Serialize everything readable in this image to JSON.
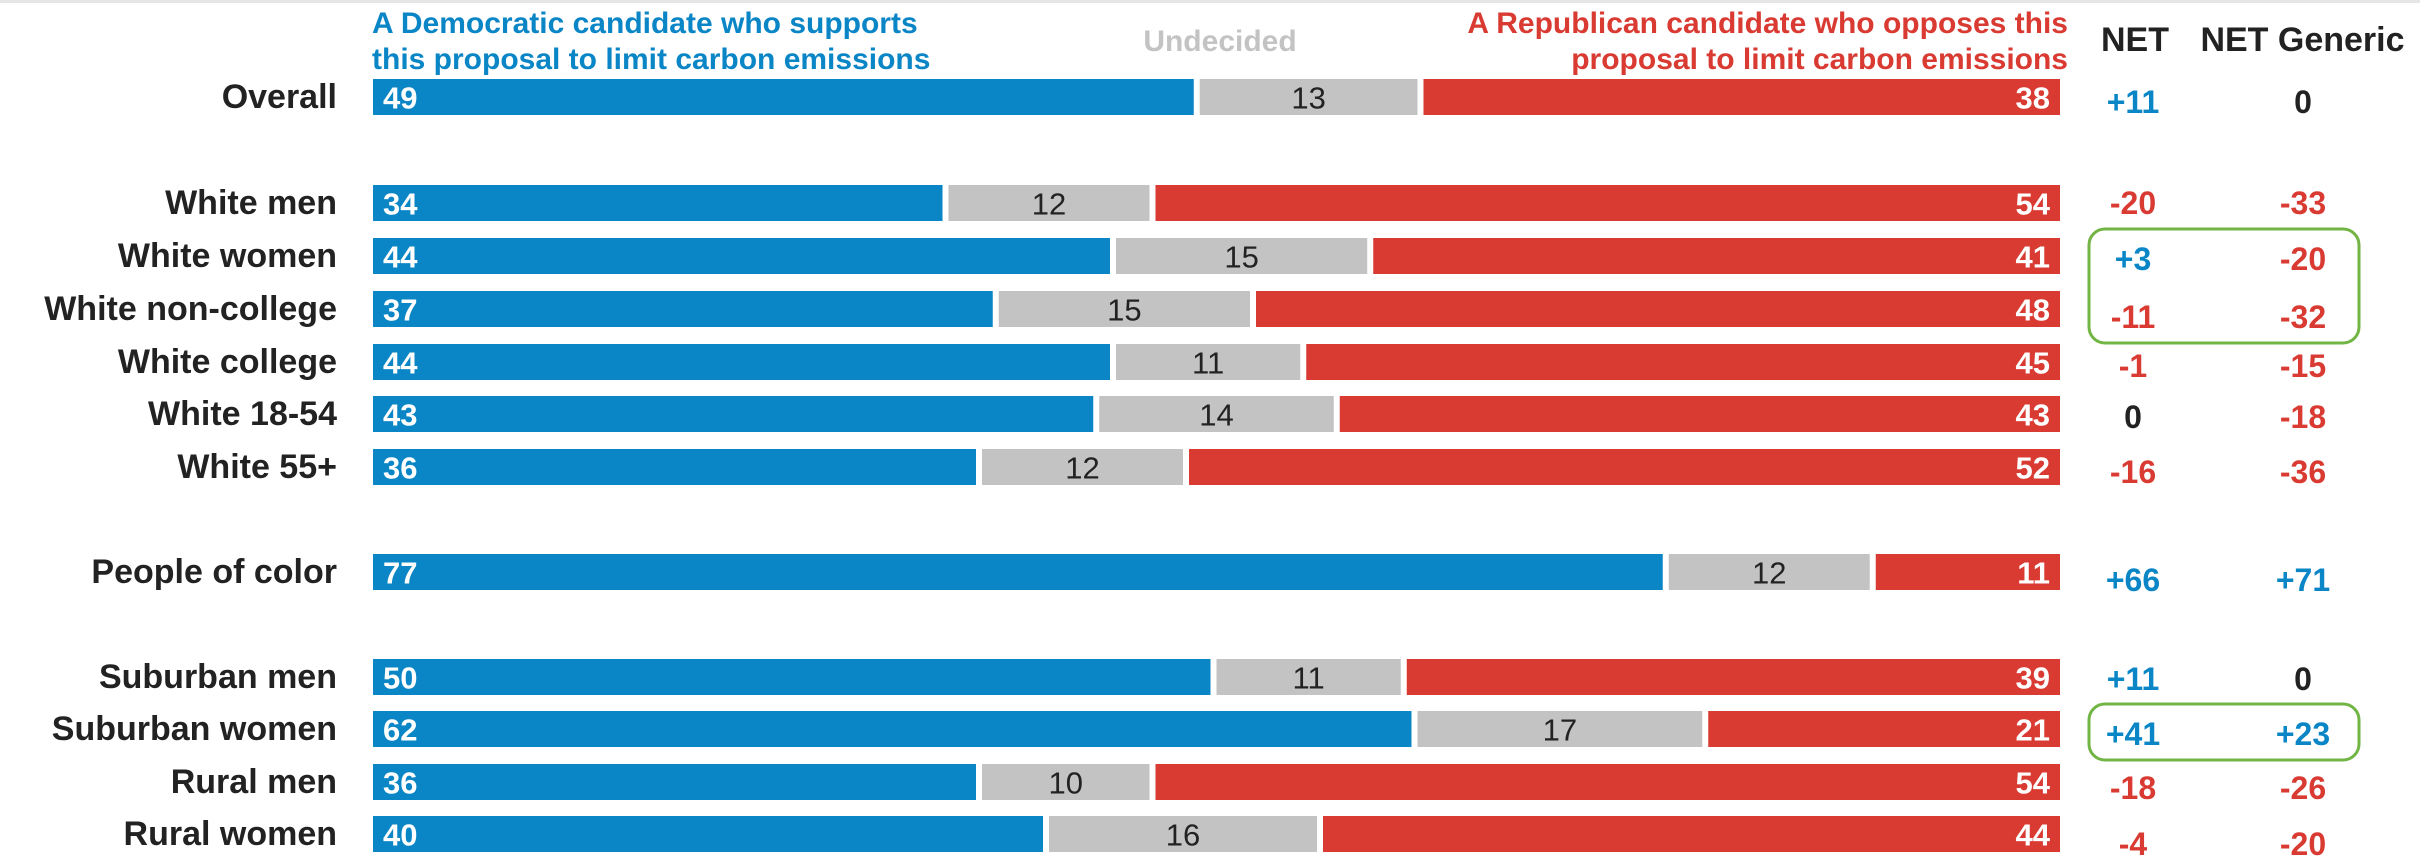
{
  "headers": {
    "dem_line1": "A Democratic candidate who supports",
    "dem_line2": "this proposal to limit carbon emissions",
    "undecided": "Undecided",
    "rep_line1": "A Republican candidate who opposes this",
    "rep_line2": "proposal to limit carbon emissions",
    "net": "NET",
    "net_generic": "NET Generic"
  },
  "colors": {
    "dem": "#0a86c6",
    "undecided": "#c3c3c3",
    "rep": "#d93a32",
    "neutral_text": "#222222",
    "highlight_box": "#72b544"
  },
  "chart_data": {
    "type": "bar",
    "stacked": true,
    "orientation": "horizontal",
    "categories": [
      "Overall",
      "White men",
      "White women",
      "White non-college",
      "White college",
      "White 18-54",
      "White 55+",
      "People of color",
      "Suburban men",
      "Suburban women",
      "Rural men",
      "Rural women"
    ],
    "series": [
      {
        "name": "A Democratic candidate who supports this proposal to limit carbon emissions",
        "values": [
          49,
          34,
          44,
          37,
          44,
          43,
          36,
          77,
          50,
          62,
          36,
          40
        ]
      },
      {
        "name": "Undecided",
        "values": [
          13,
          12,
          15,
          15,
          11,
          14,
          12,
          12,
          11,
          17,
          10,
          16
        ]
      },
      {
        "name": "A Republican candidate who opposes this proposal to limit carbon emissions",
        "values": [
          38,
          54,
          41,
          48,
          45,
          43,
          52,
          11,
          39,
          21,
          54,
          44
        ]
      }
    ],
    "net": [
      "+11",
      "-20",
      "+3",
      "-11",
      "-1",
      "0",
      "-16",
      "+66",
      "+11",
      "+41",
      "-18",
      "-4"
    ],
    "net_generic": [
      "0",
      "-33",
      "-20",
      "-32",
      "-15",
      "-18",
      "-36",
      "+71",
      "0",
      "+23",
      "-26",
      "-20"
    ],
    "xlim": [
      0,
      100
    ],
    "highlighted_groups": [
      [
        "White women",
        "White non-college"
      ],
      [
        "Suburban women"
      ]
    ]
  }
}
